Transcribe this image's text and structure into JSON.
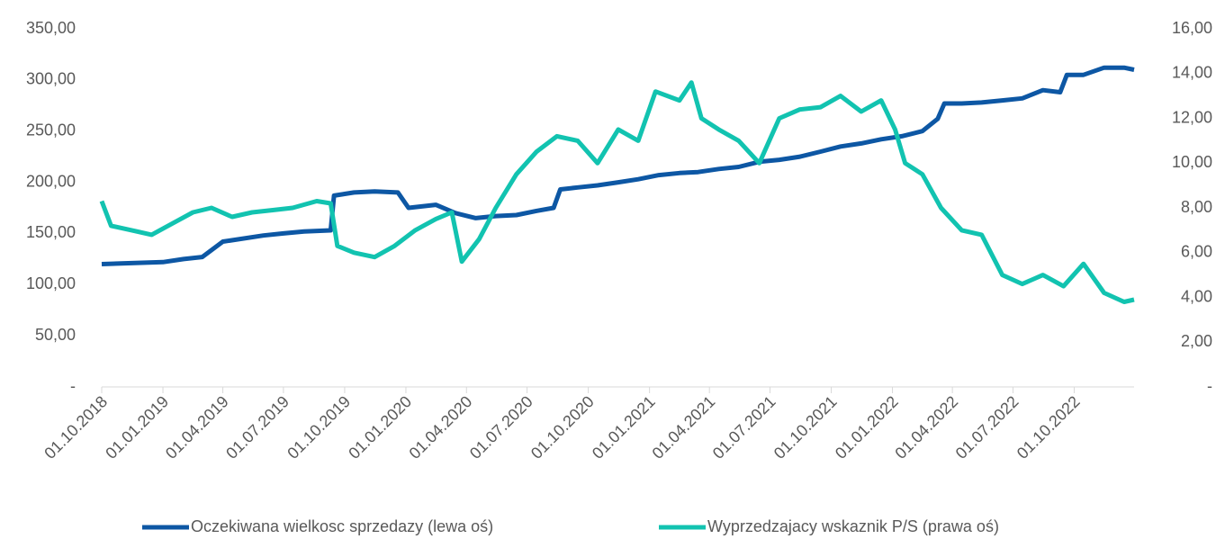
{
  "chart_data": {
    "type": "line",
    "xlim": [
      "2018-10-01",
      "2022-12-30"
    ],
    "xticks": [
      {
        "value": "2018-10-01",
        "label": "01.10.2018"
      },
      {
        "value": "2019-01-01",
        "label": "01.01.2019"
      },
      {
        "value": "2019-04-01",
        "label": "01.04.2019"
      },
      {
        "value": "2019-07-01",
        "label": "01.07.2019"
      },
      {
        "value": "2019-10-01",
        "label": "01.10.2019"
      },
      {
        "value": "2020-01-01",
        "label": "01.01.2020"
      },
      {
        "value": "2020-04-01",
        "label": "01.04.2020"
      },
      {
        "value": "2020-07-01",
        "label": "01.07.2020"
      },
      {
        "value": "2020-10-01",
        "label": "01.10.2020"
      },
      {
        "value": "2021-01-01",
        "label": "01.01.2021"
      },
      {
        "value": "2021-04-01",
        "label": "01.04.2021"
      },
      {
        "value": "2021-07-01",
        "label": "01.07.2021"
      },
      {
        "value": "2021-10-01",
        "label": "01.10.2021"
      },
      {
        "value": "2022-01-01",
        "label": "01.01.2022"
      },
      {
        "value": "2022-04-01",
        "label": "01.04.2022"
      },
      {
        "value": "2022-07-01",
        "label": "01.07.2022"
      },
      {
        "value": "2022-10-01",
        "label": "01.10.2022"
      }
    ],
    "ylim": [
      0,
      350
    ],
    "yticks": [
      {
        "value": 0,
        "label": "-"
      },
      {
        "value": 50,
        "label": "50,00"
      },
      {
        "value": 100,
        "label": "100,00"
      },
      {
        "value": 150,
        "label": "150,00"
      },
      {
        "value": 200,
        "label": "200,00"
      },
      {
        "value": 250,
        "label": "250,00"
      },
      {
        "value": 300,
        "label": "300,00"
      },
      {
        "value": 350,
        "label": "350,00"
      }
    ],
    "y2lim": [
      0,
      16
    ],
    "y2ticks": [
      {
        "value": 0,
        "label": "-"
      },
      {
        "value": 2,
        "label": "2,00"
      },
      {
        "value": 4,
        "label": "4,00"
      },
      {
        "value": 6,
        "label": "6,00"
      },
      {
        "value": 8,
        "label": "8,00"
      },
      {
        "value": 10,
        "label": "10,00"
      },
      {
        "value": 12,
        "label": "12,00"
      },
      {
        "value": 14,
        "label": "14,00"
      },
      {
        "value": 16,
        "label": "16,00"
      }
    ],
    "series": [
      {
        "name": "Oczekiwana wielkosc sprzedazy (lewa oś)",
        "color": "#0d57a4",
        "axis": "y",
        "x": [
          "2018-10-01",
          "2019-01-01",
          "2019-02-01",
          "2019-03-01",
          "2019-04-01",
          "2019-06-01",
          "2019-07-01",
          "2019-08-01",
          "2019-09-10",
          "2019-09-15",
          "2019-10-15",
          "2019-11-15",
          "2019-12-20",
          "2020-01-05",
          "2020-02-15",
          "2020-03-15",
          "2020-04-15",
          "2020-05-15",
          "2020-06-15",
          "2020-07-15",
          "2020-08-10",
          "2020-08-20",
          "2020-09-15",
          "2020-10-15",
          "2020-11-15",
          "2020-12-15",
          "2021-01-15",
          "2021-02-15",
          "2021-03-15",
          "2021-04-15",
          "2021-05-15",
          "2021-06-15",
          "2021-07-15",
          "2021-08-15",
          "2021-09-15",
          "2021-10-15",
          "2021-11-15",
          "2021-12-15",
          "2022-01-15",
          "2022-02-15",
          "2022-03-10",
          "2022-03-20",
          "2022-04-15",
          "2022-05-15",
          "2022-06-15",
          "2022-07-15",
          "2022-08-15",
          "2022-09-10",
          "2022-09-20",
          "2022-10-15",
          "2022-11-15",
          "2022-12-15",
          "2022-12-30"
        ],
        "values": [
          120,
          122,
          125,
          127,
          142,
          148,
          150,
          152,
          153,
          187,
          190,
          191,
          190,
          175,
          178,
          170,
          165,
          167,
          168,
          172,
          175,
          193,
          195,
          197,
          200,
          203,
          207,
          209,
          210,
          213,
          215,
          220,
          222,
          225,
          230,
          235,
          238,
          242,
          245,
          250,
          262,
          277,
          277,
          278,
          280,
          282,
          290,
          288,
          305,
          305,
          312,
          312,
          310
        ]
      },
      {
        "name": "Wyprzedzajacy wskaznik P/S (prawa oś)",
        "color": "#12c3b0",
        "axis": "y2",
        "x": [
          "2018-10-01",
          "2018-10-15",
          "2018-11-15",
          "2018-12-15",
          "2019-01-15",
          "2019-02-15",
          "2019-03-15",
          "2019-04-15",
          "2019-05-15",
          "2019-06-15",
          "2019-07-15",
          "2019-08-20",
          "2019-09-10",
          "2019-09-20",
          "2019-10-15",
          "2019-11-15",
          "2019-12-15",
          "2020-01-15",
          "2020-02-15",
          "2020-03-10",
          "2020-03-25",
          "2020-04-20",
          "2020-05-15",
          "2020-06-15",
          "2020-07-15",
          "2020-08-15",
          "2020-09-15",
          "2020-10-15",
          "2020-11-15",
          "2020-12-15",
          "2021-01-10",
          "2021-02-15",
          "2021-03-05",
          "2021-03-20",
          "2021-04-15",
          "2021-05-15",
          "2021-06-15",
          "2021-07-15",
          "2021-08-15",
          "2021-09-15",
          "2021-10-15",
          "2021-11-15",
          "2021-12-15",
          "2022-01-05",
          "2022-01-20",
          "2022-02-15",
          "2022-03-15",
          "2022-04-15",
          "2022-05-15",
          "2022-06-15",
          "2022-07-15",
          "2022-08-15",
          "2022-09-15",
          "2022-10-15",
          "2022-11-15",
          "2022-12-15",
          "2022-12-30"
        ],
        "values": [
          8.3,
          7.2,
          7.0,
          6.8,
          7.3,
          7.8,
          8.0,
          7.6,
          7.8,
          7.9,
          8.0,
          8.3,
          8.2,
          6.3,
          6.0,
          5.8,
          6.3,
          7.0,
          7.5,
          7.8,
          5.6,
          6.6,
          8.0,
          9.5,
          10.5,
          11.2,
          11.0,
          10.0,
          11.5,
          11.0,
          13.2,
          12.8,
          13.6,
          12.0,
          11.5,
          11.0,
          10.0,
          12.0,
          12.4,
          12.5,
          13.0,
          12.3,
          12.8,
          11.5,
          10.0,
          9.5,
          8.0,
          7.0,
          6.8,
          5.0,
          4.6,
          5.0,
          4.5,
          5.5,
          4.2,
          3.8,
          3.9
        ]
      }
    ]
  }
}
